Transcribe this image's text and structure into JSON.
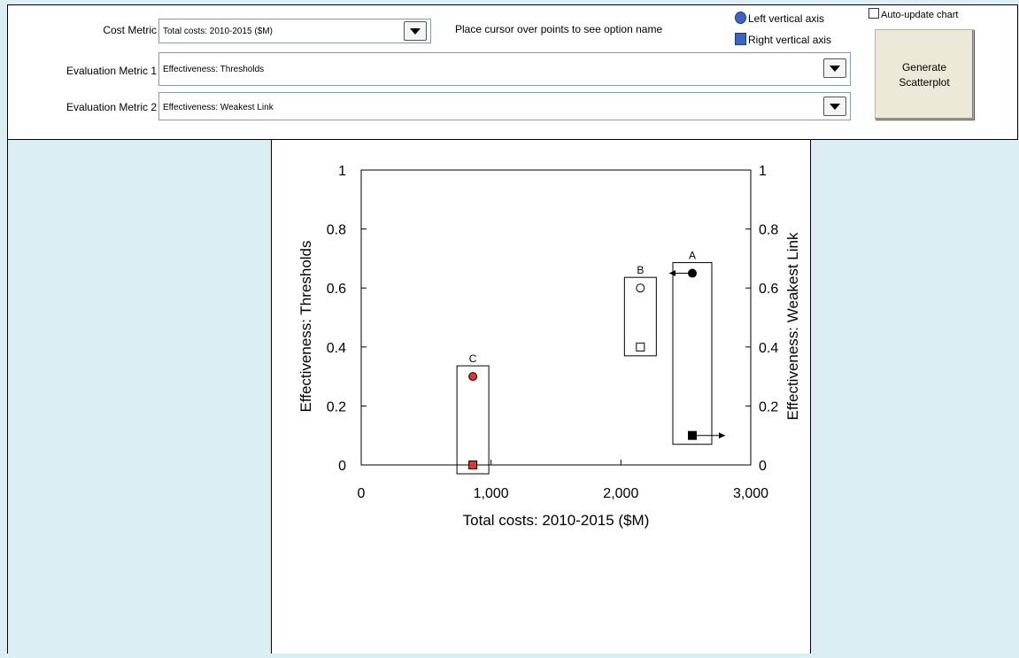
{
  "controls": {
    "cost_metric": {
      "label": "Cost Metric",
      "value": "Total costs: 2010-2015 ($M)"
    },
    "eval_metric_1": {
      "label": "Evaluation Metric 1",
      "value": "Effectiveness: Thresholds"
    },
    "eval_metric_2": {
      "label": "Evaluation Metric 2",
      "value": "Effectiveness: Weakest Link"
    },
    "hover_instruction": "Place cursor over points to see option name",
    "legend": {
      "left_axis": "Left vertical axis",
      "right_axis": "Right vertical axis"
    },
    "auto_update_label": "Auto-update chart",
    "auto_update_checked": false,
    "generate_line1": "Generate",
    "generate_line2": "Scatterplot"
  },
  "colors": {
    "background": "#daeef3",
    "legend_marker": "#3a63c6",
    "highlight_red": "#e0362a"
  },
  "chart_data": {
    "type": "scatter",
    "xlabel": "Total costs: 2010-2015 ($M)",
    "ylabel_left": "Effectiveness: Thresholds",
    "ylabel_right": "Effectiveness: Weakest Link",
    "xlim": [
      0,
      3000
    ],
    "ylim": [
      0,
      1
    ],
    "x_ticks": [
      0,
      1000,
      2000,
      3000
    ],
    "x_tick_labels": [
      "0",
      "1,000",
      "2,000",
      "3,000"
    ],
    "y_ticks": [
      0,
      0.2,
      0.4,
      0.6,
      0.8,
      1
    ],
    "y_tick_labels": [
      "0",
      "0.2",
      "0.4",
      "0.6",
      "0.8",
      "1"
    ],
    "options": [
      {
        "label": "A",
        "cost": 2550,
        "left": 0.65,
        "right": 0.1,
        "left_fill": "#000000",
        "right_fill": "#000000",
        "arrows": true
      },
      {
        "label": "B",
        "cost": 2150,
        "left": 0.6,
        "right": 0.4,
        "left_fill": "#ffffff",
        "right_fill": "#ffffff",
        "arrows": false
      },
      {
        "label": "C",
        "cost": 860,
        "left": 0.3,
        "right": 0.0,
        "left_fill": "#e0362a",
        "right_fill": "#e0362a",
        "arrows": false
      }
    ]
  }
}
